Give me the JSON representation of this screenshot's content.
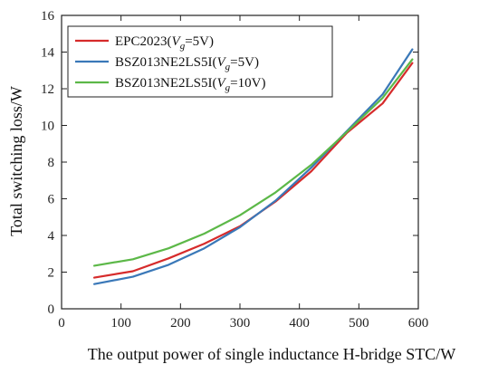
{
  "chart_data": {
    "type": "line",
    "title": "",
    "xlabel": "The output power of single inductance H-bridge STC/W",
    "ylabel": "Total switching loss/W",
    "xlim": [
      0,
      600
    ],
    "ylim": [
      0,
      16
    ],
    "xticks": [
      "0",
      "100",
      "200",
      "300",
      "400",
      "500",
      "600"
    ],
    "yticks": [
      "0",
      "2",
      "4",
      "6",
      "8",
      "10",
      "12",
      "14",
      "16"
    ],
    "grid": false,
    "legend_position": "top-left",
    "series": [
      {
        "name": "EPC2023(Vg=5V)",
        "label_main": "EPC2023(",
        "label_var": "V",
        "label_sub": "g",
        "label_tail": "=5V)",
        "color": "#d62b2b",
        "x": [
          55,
          120,
          180,
          240,
          300,
          360,
          420,
          480,
          540,
          590
        ],
        "y": [
          1.7,
          2.05,
          2.75,
          3.55,
          4.5,
          5.85,
          7.5,
          9.6,
          11.2,
          13.4
        ]
      },
      {
        "name": "BSZ013NE2LS5I(Vg=5V)",
        "label_main": "BSZ013NE2LS5I(",
        "label_var": "V",
        "label_sub": "g",
        "label_tail": "=5V)",
        "color": "#3a78b8",
        "x": [
          55,
          120,
          180,
          240,
          300,
          360,
          420,
          480,
          540,
          590
        ],
        "y": [
          1.35,
          1.75,
          2.4,
          3.3,
          4.45,
          5.9,
          7.7,
          9.7,
          11.7,
          14.15
        ]
      },
      {
        "name": "BSZ013NE2LS5I(Vg=10V)",
        "label_main": "BSZ013NE2LS5I(",
        "label_var": "V",
        "label_sub": "g",
        "label_tail": "=10V)",
        "color": "#5cb848",
        "x": [
          55,
          120,
          180,
          240,
          300,
          360,
          420,
          480,
          540,
          590
        ],
        "y": [
          2.35,
          2.7,
          3.3,
          4.1,
          5.1,
          6.35,
          7.85,
          9.65,
          11.5,
          13.6
        ]
      }
    ]
  }
}
